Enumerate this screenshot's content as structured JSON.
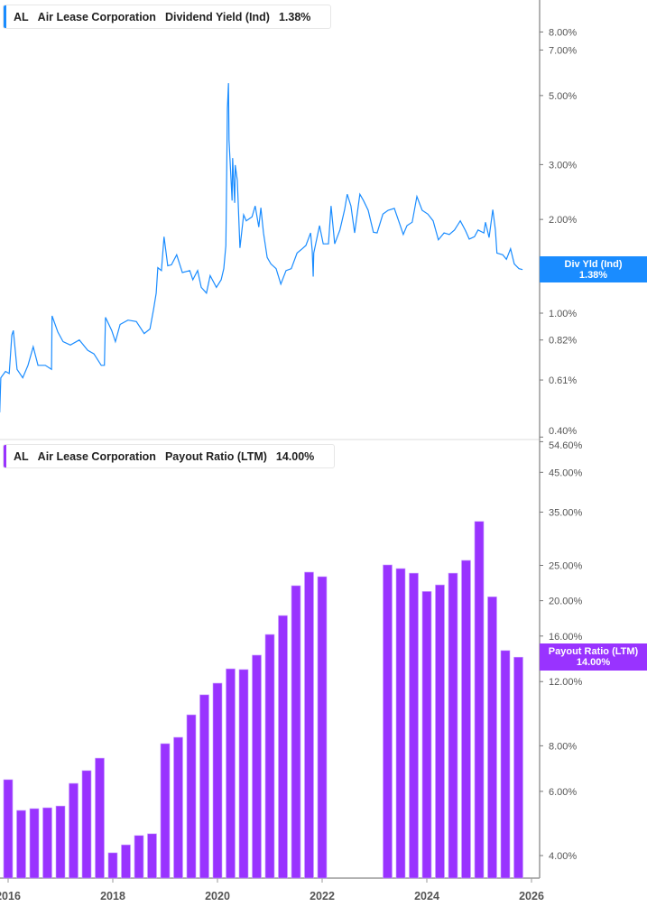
{
  "colors": {
    "yield": "#1a8cff",
    "payout": "#9933ff",
    "axis": "#999999",
    "text": "#555555"
  },
  "top_legend": {
    "ticker": "AL",
    "company": "Air Lease Corporation",
    "metric": "Dividend Yield (Ind)",
    "value": "1.38%"
  },
  "bottom_legend": {
    "ticker": "AL",
    "company": "Air Lease Corporation",
    "metric": "Payout Ratio (LTM)",
    "value": "14.00%"
  },
  "top_price_label": {
    "name": "Div Yld (Ind)",
    "value": "1.38%"
  },
  "bottom_price_label": {
    "name": "Payout Ratio (LTM)",
    "value": "14.00%"
  },
  "chart_data": [
    {
      "type": "line",
      "series_name": "Dividend Yield (Ind)",
      "yscale": "log",
      "ylim": [
        0.4,
        9.0
      ],
      "y_ticks": [
        {
          "v": 8,
          "label": "8.00%"
        },
        {
          "v": 7,
          "label": "7.00%"
        },
        {
          "v": 5,
          "label": "5.00%"
        },
        {
          "v": 3,
          "label": "3.00%"
        },
        {
          "v": 2,
          "label": "2.00%"
        },
        {
          "v": 1,
          "label": "1.00%"
        },
        {
          "v": 0.82,
          "label": "0.82%"
        },
        {
          "v": 0.61,
          "label": "0.61%"
        },
        {
          "v": 0.4,
          "label": "0.40%"
        }
      ],
      "x": [
        2015.84,
        2015.86,
        2015.95,
        2016.02,
        2016.07,
        2016.1,
        2016.17,
        2016.28,
        2016.38,
        2016.48,
        2016.57,
        2016.71,
        2016.83,
        2016.84,
        2016.95,
        2017.05,
        2017.19,
        2017.36,
        2017.52,
        2017.64,
        2017.78,
        2017.84,
        2017.86,
        2017.98,
        2018.05,
        2018.14,
        2018.29,
        2018.45,
        2018.6,
        2018.71,
        2018.78,
        2018.83,
        2018.86,
        2018.93,
        2018.98,
        2019.05,
        2019.12,
        2019.22,
        2019.33,
        2019.47,
        2019.53,
        2019.62,
        2019.69,
        2019.79,
        2019.86,
        2019.98,
        2020.07,
        2020.12,
        2020.16,
        2020.17,
        2020.19,
        2020.21,
        2020.22,
        2020.28,
        2020.29,
        2020.33,
        2020.34,
        2020.38,
        2020.43,
        2020.5,
        2020.55,
        2020.66,
        2020.72,
        2020.79,
        2020.83,
        2020.88,
        2020.95,
        2021.02,
        2021.12,
        2021.21,
        2021.31,
        2021.41,
        2021.52,
        2021.62,
        2021.69,
        2021.78,
        2021.81,
        2021.83,
        2021.84,
        2021.95,
        2022.02,
        2022.12,
        2022.17,
        2022.24,
        2022.34,
        2022.43,
        2022.48,
        2022.55,
        2022.62,
        2022.72,
        2022.79,
        2022.88,
        2022.98,
        2023.05,
        2023.16,
        2023.26,
        2023.38,
        2023.48,
        2023.55,
        2023.62,
        2023.72,
        2023.81,
        2023.91,
        2024.02,
        2024.12,
        2024.22,
        2024.33,
        2024.43,
        2024.53,
        2024.64,
        2024.74,
        2024.81,
        2024.91,
        2024.98,
        2025.09,
        2025.12,
        2025.19,
        2025.26,
        2025.31,
        2025.34,
        2025.45,
        2025.52,
        2025.6,
        2025.67,
        2025.76,
        2025.83
      ],
      "y": [
        0.48,
        0.62,
        0.65,
        0.64,
        0.85,
        0.88,
        0.66,
        0.62,
        0.68,
        0.78,
        0.68,
        0.68,
        0.66,
        0.98,
        0.87,
        0.81,
        0.79,
        0.82,
        0.76,
        0.74,
        0.68,
        0.68,
        0.97,
        0.88,
        0.81,
        0.92,
        0.95,
        0.94,
        0.86,
        0.89,
        1.03,
        1.16,
        1.4,
        1.37,
        1.76,
        1.42,
        1.43,
        1.54,
        1.35,
        1.37,
        1.28,
        1.37,
        1.21,
        1.16,
        1.32,
        1.21,
        1.28,
        1.39,
        1.65,
        2.3,
        4.55,
        5.48,
        3.6,
        2.3,
        3.15,
        2.26,
        2.99,
        2.67,
        1.62,
        2.07,
        1.98,
        2.04,
        2.21,
        1.89,
        2.18,
        1.81,
        1.51,
        1.44,
        1.39,
        1.24,
        1.37,
        1.39,
        1.56,
        1.61,
        1.65,
        1.81,
        1.59,
        1.31,
        1.56,
        1.91,
        1.67,
        1.67,
        2.21,
        1.67,
        1.85,
        2.15,
        2.41,
        2.21,
        1.81,
        2.41,
        2.3,
        2.14,
        1.82,
        1.81,
        2.08,
        2.14,
        2.17,
        1.94,
        1.79,
        1.91,
        1.96,
        2.37,
        2.14,
        2.08,
        1.98,
        1.72,
        1.81,
        1.79,
        1.85,
        1.98,
        1.84,
        1.73,
        1.76,
        1.85,
        1.81,
        1.96,
        1.75,
        2.15,
        1.85,
        1.56,
        1.54,
        1.49,
        1.61,
        1.44,
        1.39,
        1.38
      ]
    },
    {
      "type": "bar",
      "series_name": "Payout Ratio (LTM)",
      "yscale": "log",
      "ylim": [
        3.7,
        55
      ],
      "y_ticks": [
        {
          "v": 54.6,
          "label": "54.60%"
        },
        {
          "v": 45,
          "label": "45.00%"
        },
        {
          "v": 35,
          "label": "35.00%"
        },
        {
          "v": 25,
          "label": "25.00%"
        },
        {
          "v": 20,
          "label": "20.00%"
        },
        {
          "v": 16,
          "label": "16.00%"
        },
        {
          "v": 12,
          "label": "12.00%"
        },
        {
          "v": 8,
          "label": "8.00%"
        },
        {
          "v": 6,
          "label": "6.00%"
        },
        {
          "v": 4,
          "label": "4.00%"
        }
      ],
      "x": [
        2016.0,
        2016.25,
        2016.5,
        2016.75,
        2017.0,
        2017.25,
        2017.5,
        2017.75,
        2018.0,
        2018.25,
        2018.5,
        2018.75,
        2019.0,
        2019.25,
        2019.5,
        2019.75,
        2020.0,
        2020.25,
        2020.5,
        2020.75,
        2021.0,
        2021.25,
        2021.5,
        2021.75,
        2022.0,
        2023.25,
        2023.5,
        2023.75,
        2024.0,
        2024.25,
        2024.5,
        2024.75,
        2025.0,
        2025.25,
        2025.5,
        2025.75
      ],
      "values": [
        6.46,
        5.32,
        5.38,
        5.41,
        5.47,
        6.31,
        6.84,
        7.4,
        4.07,
        4.28,
        4.54,
        4.59,
        8.11,
        8.44,
        9.73,
        11.04,
        11.88,
        13.01,
        12.95,
        14.18,
        16.16,
        18.21,
        21.99,
        23.95,
        23.28,
        25.07,
        24.5,
        23.8,
        21.2,
        22.1,
        23.8,
        25.8,
        33.0,
        20.5,
        14.6,
        14.0
      ]
    }
  ],
  "x_axis": {
    "ticks": [
      {
        "year": 2016,
        "label": "2016"
      },
      {
        "year": 2018,
        "label": "2018"
      },
      {
        "year": 2020,
        "label": "2020"
      },
      {
        "year": 2022,
        "label": "2022"
      },
      {
        "year": 2024,
        "label": "2024"
      },
      {
        "year": 2026,
        "label": "2026"
      }
    ]
  }
}
